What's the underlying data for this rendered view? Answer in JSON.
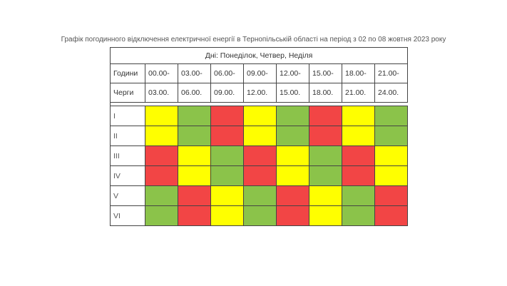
{
  "title": "Графік погодинного відключення електричної енергії  в Тернопільській області на період з 02 по 08 жовтня 2023 року",
  "days": "Дні: Понеділок, Четвер, Неділя",
  "hours_label": "Години",
  "queues_label": "Черги",
  "time_starts": [
    "00.00-",
    "03.00-",
    "06.00-",
    "09.00-",
    "12.00-",
    "15.00-",
    "18.00-",
    "21.00-"
  ],
  "time_ends": [
    "03.00.",
    "06.00.",
    "09.00.",
    "12.00.",
    "15.00.",
    "18.00.",
    "21.00.",
    "24.00."
  ],
  "groups": [
    {
      "label": "I",
      "cells": [
        "yellow",
        "green",
        "red",
        "yellow",
        "green",
        "red",
        "yellow",
        "green"
      ]
    },
    {
      "label": "II",
      "cells": [
        "yellow",
        "green",
        "red",
        "yellow",
        "green",
        "red",
        "yellow",
        "green"
      ]
    },
    {
      "label": "III",
      "cells": [
        "red",
        "yellow",
        "green",
        "red",
        "yellow",
        "green",
        "red",
        "yellow"
      ]
    },
    {
      "label": "IV",
      "cells": [
        "red",
        "yellow",
        "green",
        "red",
        "yellow",
        "green",
        "red",
        "yellow"
      ]
    },
    {
      "label": "V",
      "cells": [
        "green",
        "red",
        "yellow",
        "green",
        "red",
        "yellow",
        "green",
        "red"
      ]
    },
    {
      "label": "VI",
      "cells": [
        "green",
        "red",
        "yellow",
        "green",
        "red",
        "yellow",
        "green",
        "red"
      ]
    }
  ],
  "colors": {
    "green": "#8bc34a",
    "yellow": "#ffff00",
    "red": "#f24545"
  }
}
